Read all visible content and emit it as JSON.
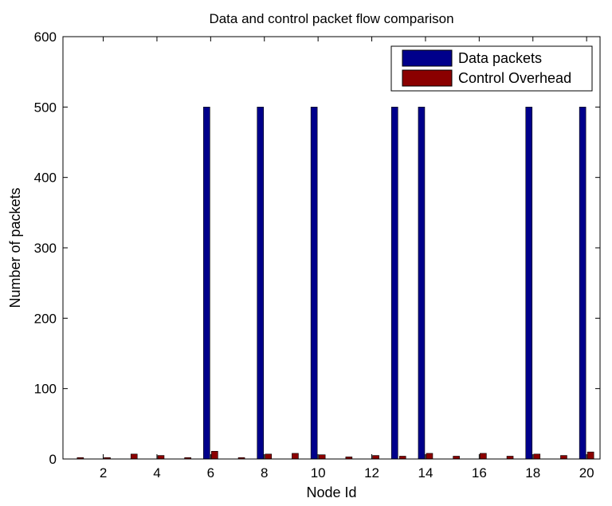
{
  "chart_data": {
    "type": "bar",
    "title": "Data and control packet flow comparison",
    "xlabel": "Node Id",
    "ylabel": "Number of packets",
    "x": [
      1,
      2,
      3,
      4,
      5,
      6,
      7,
      8,
      9,
      10,
      11,
      12,
      13,
      14,
      15,
      16,
      17,
      18,
      19,
      20
    ],
    "xlim": [
      0.5,
      20.5
    ],
    "ylim": [
      0,
      600
    ],
    "xticks": [
      2,
      4,
      6,
      8,
      10,
      12,
      14,
      16,
      18,
      20
    ],
    "yticks": [
      0,
      100,
      200,
      300,
      400,
      500,
      600
    ],
    "grid": false,
    "legend_position": "top-right",
    "series": [
      {
        "name": "Data packets",
        "color": "#00008b",
        "values": [
          0,
          0,
          0,
          0,
          0,
          500,
          0,
          500,
          0,
          500,
          0,
          0,
          500,
          500,
          0,
          0,
          0,
          500,
          0,
          500
        ]
      },
      {
        "name": "Control Overhead",
        "color": "#8b0000",
        "values": [
          2,
          2,
          7,
          5,
          2,
          11,
          2,
          7,
          8,
          6,
          3,
          5,
          4,
          8,
          4,
          8,
          4,
          7,
          5,
          10
        ]
      }
    ]
  }
}
